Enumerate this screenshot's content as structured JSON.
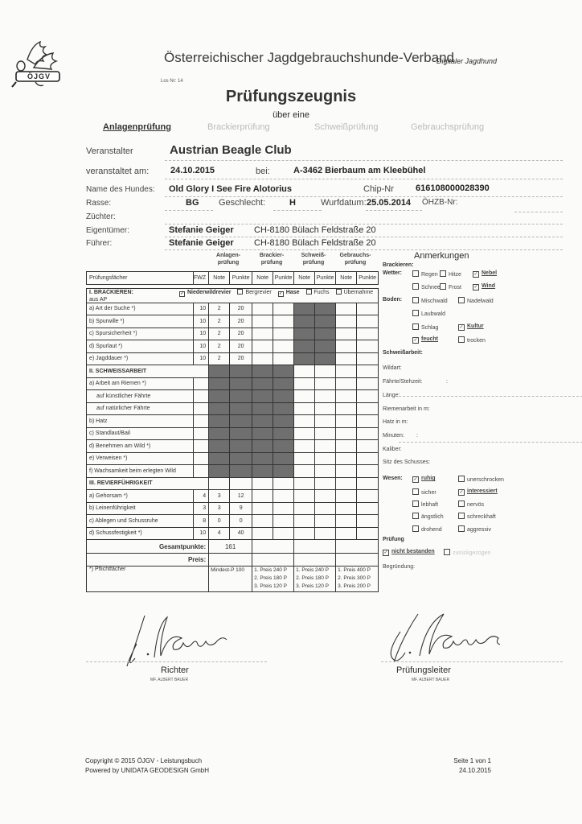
{
  "header": {
    "logo_text": "ÖJGV",
    "organization": "Österreichischer Jagdgebrauchshunde-Verband",
    "tagline": "Digitaler Jagdhund",
    "los_nr": "Los Nr: 14",
    "title": "Prüfungszeugnis",
    "subtitle": "über eine",
    "exam_types": [
      {
        "label": "Anlagenprüfung",
        "selected": true
      },
      {
        "label": "Brackierprüfung",
        "selected": false
      },
      {
        "label": "Schweißprüfung",
        "selected": false
      },
      {
        "label": "Gebrauchsprüfung",
        "selected": false
      }
    ]
  },
  "info": {
    "veranstalter_label": "Veranstalter",
    "veranstalter": "Austrian Beagle Club",
    "datum_label": "veranstaltet am:",
    "datum": "24.10.2015",
    "bei_label": "bei:",
    "ort": "A-3462 Bierbaum am Kleebühel",
    "hund_label": "Name des Hundes:",
    "hund": "Old Glory I See Fire Alotorius",
    "chip_label": "Chip-Nr",
    "chip": "616108000028390",
    "rasse_label": "Rasse:",
    "rasse": "BG",
    "geschlecht_label": "Geschlecht:",
    "geschlecht": "H",
    "wurfdatum_label": "Wurfdatum:",
    "wurfdatum": "25.05.2014",
    "oehzb_label": "ÖHZB-Nr:",
    "zuechter_label": "Züchter:",
    "eigentuemer_label": "Eigentümer:",
    "eigentuemer_name": "Stefanie Geiger",
    "eigentuemer_adresse": "CH-8180 Bülach Feldstraße 20",
    "fuehrer_label": "Führer:",
    "fuehrer_name": "Stefanie Geiger",
    "fuehrer_adresse": "CH-8180 Bülach Feldstraße 20"
  },
  "table": {
    "group_headers": [
      "Anlagen-\nprüfung",
      "Brackier-\nprüfung",
      "Schweiß-\nprüfung",
      "Gebrauchs-\nprüfung"
    ],
    "col_headers": [
      "Prüfungsfächer",
      "FWZ",
      "Note",
      "Punkte",
      "Note",
      "Punkte",
      "Note",
      "Punkte",
      "Note",
      "Punkte"
    ],
    "brackieren_options": [
      {
        "label": "Niederwildrevier",
        "checked": true
      },
      {
        "label": "Bergrevier",
        "checked": false
      },
      {
        "label": "Hase",
        "checked": true
      },
      {
        "label": "Fuchs",
        "checked": false
      },
      {
        "label": "Übernahme aus AP",
        "checked": false
      }
    ],
    "rows": [
      {
        "type": "section",
        "label": "I. BRACKIEREN:"
      },
      {
        "label": "a) Art der Suche *)",
        "fwz": "10",
        "note": "2",
        "punkte": "20",
        "shade": "schweiss"
      },
      {
        "label": "b) Spurwille *)",
        "fwz": "10",
        "note": "2",
        "punkte": "20",
        "shade": "schweiss"
      },
      {
        "label": "c) Spursicherheit *)",
        "fwz": "10",
        "note": "2",
        "punkte": "20",
        "shade": "schweiss"
      },
      {
        "label": "d) Spurlaut *)",
        "fwz": "10",
        "note": "2",
        "punkte": "20",
        "shade": "schweiss"
      },
      {
        "label": "e) Jagddauer *)",
        "fwz": "10",
        "note": "2",
        "punkte": "20",
        "shade": "schweiss"
      },
      {
        "type": "section",
        "label": "II. SCHWEISSARBEIT",
        "shade": "anlagen-brackier"
      },
      {
        "label": "a) Arbeit am Riemen *)",
        "fwz": "",
        "note": "",
        "punkte": "",
        "shade": "anlagen-brackier"
      },
      {
        "label": "    auf künstlicher Fährte",
        "fwz": "",
        "note": "",
        "punkte": "",
        "shade": "anlagen-brackier"
      },
      {
        "label": "    auf natürlicher Fährte",
        "fwz": "",
        "note": "",
        "punkte": "",
        "shade": "anlagen-brackier"
      },
      {
        "label": "b) Hatz",
        "fwz": "",
        "note": "",
        "punkte": "",
        "shade": "anlagen-brackier"
      },
      {
        "label": "c) Standlaut/Bail",
        "fwz": "",
        "note": "",
        "punkte": "",
        "shade": "anlagen-brackier"
      },
      {
        "label": "d) Benehmen am  Wild *)",
        "fwz": "",
        "note": "",
        "punkte": "",
        "shade": "anlagen-brackier"
      },
      {
        "label": "e) Verweisen *)",
        "fwz": "",
        "note": "",
        "punkte": "",
        "shade": "anlagen-brackier"
      },
      {
        "label": "f) Wachsamkeit beim erlegten Wild",
        "fwz": "",
        "note": "",
        "punkte": "",
        "shade": "anlagen-brackier"
      },
      {
        "type": "section",
        "label": "III. REVIERFÜHRIGKEIT"
      },
      {
        "label": "a) Gehorsam *)",
        "fwz": "4",
        "note": "3",
        "punkte": "12"
      },
      {
        "label": "b) Leinenführigkeit",
        "fwz": "3",
        "note": "3",
        "punkte": "9"
      },
      {
        "label": "c) Ablegen und Schussruhe",
        "fwz": "8",
        "note": "0",
        "punkte": "0"
      },
      {
        "label": "d) Schussfestigkeit *)",
        "fwz": "10",
        "note": "4",
        "punkte": "40"
      }
    ],
    "gesamtpunkte_label": "Gesamtpunkte:",
    "gesamtpunkte": "161",
    "preis_label": "Preis:",
    "pflicht_label": "*) Pflichtfächer",
    "min_anlagen": "Mindest-P 100",
    "preise_brackier": "1. Preis 240 P\n2. Preis 180 P\n3. Preis 120 P",
    "preise_schweiss": "1. Preis 240 P\n2. Preis 180 P\n3. Preis 120 P",
    "preise_gebrauch": "1. Preis 400 P\n2. Preis 300 P\n3. Preis 200 P"
  },
  "remarks": {
    "title": "Anmerkungen",
    "brackieren_label": "Brackieren:",
    "wetter_label": "Wetter:",
    "wetter": [
      {
        "label": "Regen",
        "checked": false
      },
      {
        "label": "Hitze",
        "checked": false
      },
      {
        "label": "Nebel",
        "checked": true
      },
      {
        "label": "Schnee",
        "checked": false
      },
      {
        "label": "Frost",
        "checked": false
      },
      {
        "label": "Wind",
        "checked": true
      }
    ],
    "boden_label": "Boden:",
    "boden": [
      {
        "label": "Mischwald",
        "checked": false
      },
      {
        "label": "Nadelwald",
        "checked": false
      },
      {
        "label": "Laubwald",
        "checked": false
      },
      {
        "label": "Schlag",
        "checked": false
      },
      {
        "label": "Kultur",
        "checked": true
      },
      {
        "label": "feucht",
        "checked": true
      },
      {
        "label": "trocken",
        "checked": false
      }
    ],
    "schweiss_label": "Schweißarbeit:",
    "wildart_label": "Wildart:",
    "faehrte_label": "Fährte/Stehzeit:",
    "faehrte_sep": ":",
    "laenge_label": "Länge:",
    "riemen_label": "Riemenarbeit in m:",
    "hatz_label": "Hatz in m:",
    "minuten_label": "Minuten:",
    "minuten_sep": ":",
    "kaliber_label": "Kaliber:",
    "sitz_label": "Sitz des Schusses:",
    "wesen_label": "Wesen:",
    "wesen": [
      {
        "label": "ruhig",
        "checked": true
      },
      {
        "label": "unerschrocken",
        "checked": false
      },
      {
        "label": "sicher",
        "checked": false
      },
      {
        "label": "interessiert",
        "checked": true
      },
      {
        "label": "lebhaft",
        "checked": false
      },
      {
        "label": "nervös",
        "checked": false
      },
      {
        "label": "ängstlich",
        "checked": false
      },
      {
        "label": "schreckhaft",
        "checked": false
      },
      {
        "label": "drohend",
        "checked": false
      },
      {
        "label": "aggressiv",
        "checked": false
      }
    ],
    "pruefung_label": "Prüfung",
    "pruefung": [
      {
        "label": "nicht bestanden",
        "checked": true
      },
      {
        "label": "zurückgezogen",
        "checked": false
      }
    ],
    "begruendung_label": "Begründung:"
  },
  "signatures": {
    "richter_label": "Richter",
    "richter_name": "MF. ALBERT BAUER",
    "leiter_label": "Prüfungsleiter",
    "leiter_name": "MF. ALBERT BAUER"
  },
  "footer": {
    "copyright": "Copyright © 2015 ÖJGV - Leistungsbuch",
    "powered": "Powered by UNIDATA GEODESIGN GmbH",
    "page": "Seite 1 von 1",
    "date": "24.10.2015"
  }
}
